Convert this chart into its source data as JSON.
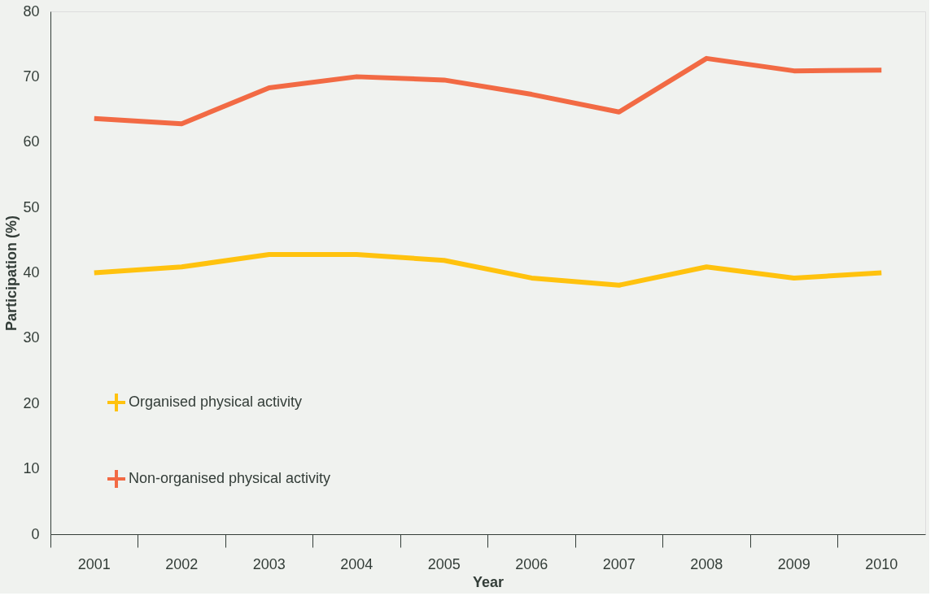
{
  "chart_data": {
    "type": "line",
    "xlabel": "Year",
    "ylabel": "Participation (%)",
    "categories": [
      "2001",
      "2002",
      "2003",
      "2004",
      "2005",
      "2006",
      "2007",
      "2008",
      "2009",
      "2010"
    ],
    "series": [
      {
        "name": "Organised physical activity",
        "color": "#ffc20e",
        "values": [
          40.0,
          40.9,
          42.8,
          42.8,
          41.9,
          39.2,
          38.1,
          40.9,
          39.2,
          40.0
        ]
      },
      {
        "name": "Non-organised physical activity",
        "color": "#f26a44",
        "values": [
          63.6,
          62.8,
          68.3,
          70.0,
          69.5,
          67.3,
          64.6,
          72.8,
          70.9,
          71.0
        ]
      }
    ],
    "ylim": [
      0,
      80
    ],
    "yticks": [
      0,
      10,
      20,
      30,
      40,
      50,
      60,
      70,
      80
    ],
    "grid": false,
    "legend": "bottom left",
    "marker": "none",
    "line_style": "solid"
  }
}
